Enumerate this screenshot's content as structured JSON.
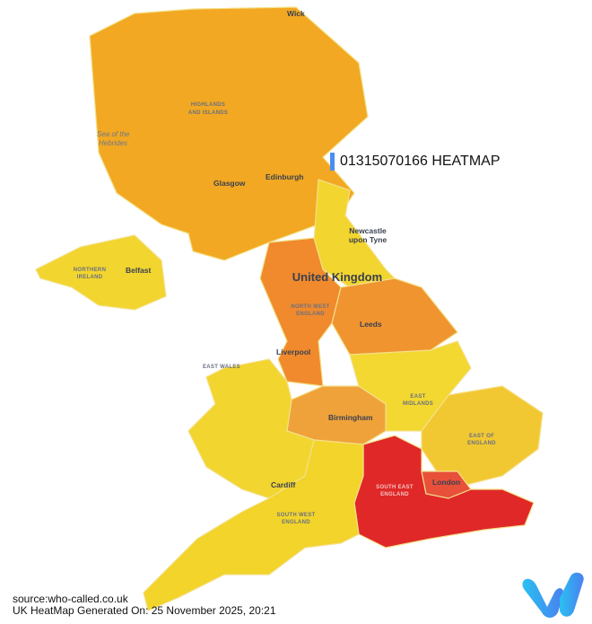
{
  "title": "01315070166 HEATMAP",
  "title_bar_color": "#4a8ef0",
  "map": {
    "country_label": "United Kingdom",
    "sea_label": [
      "Sea of the",
      "Hebrides"
    ],
    "regions": [
      {
        "name": "Scotland",
        "color": "#f2a822"
      },
      {
        "name": "Northern Ireland",
        "color": "#f2d52e"
      },
      {
        "name": "North East",
        "color": "#f2d52e"
      },
      {
        "name": "North West England",
        "color": "#f08a2c"
      },
      {
        "name": "Yorkshire",
        "color": "#f09430"
      },
      {
        "name": "East Midlands",
        "color": "#f2d830"
      },
      {
        "name": "West Midlands",
        "color": "#f0a23a"
      },
      {
        "name": "East Wales",
        "color": "#f2d52e"
      },
      {
        "name": "East of England",
        "color": "#f2c832"
      },
      {
        "name": "London",
        "color": "#e8503a"
      },
      {
        "name": "South East England",
        "color": "#e02828"
      },
      {
        "name": "South West England",
        "color": "#f2d42a"
      }
    ],
    "region_labels": {
      "highlands": [
        "HIGHLANDS",
        "AND ISLANDS"
      ],
      "northern_ireland": [
        "NORTHERN",
        "IRELAND"
      ],
      "north_west": [
        "NORTH WEST",
        "ENGLAND"
      ],
      "east_wales": "EAST WALES",
      "east_midlands": [
        "EAST",
        "MIDLANDS"
      ],
      "east_of_england": [
        "EAST OF",
        "ENGLAND"
      ],
      "south_east": [
        "SOUTH EAST",
        "ENGLAND"
      ],
      "south_west": [
        "SOUTH WEST",
        "ENGLAND"
      ]
    },
    "cities": {
      "wick": "Wick",
      "glasgow": "Glasgow",
      "edinburgh": "Edinburgh",
      "newcastle": [
        "Newcastle",
        "upon Tyne"
      ],
      "belfast": "Belfast",
      "leeds": "Leeds",
      "liverpool": "Liverpool",
      "birmingham": "Birmingham",
      "cardiff": "Cardiff",
      "london": "London"
    }
  },
  "footer": {
    "source": "source:who-called.co.uk",
    "generated": "UK HeatMap Generated On: 25 November 2025, 20:21"
  }
}
